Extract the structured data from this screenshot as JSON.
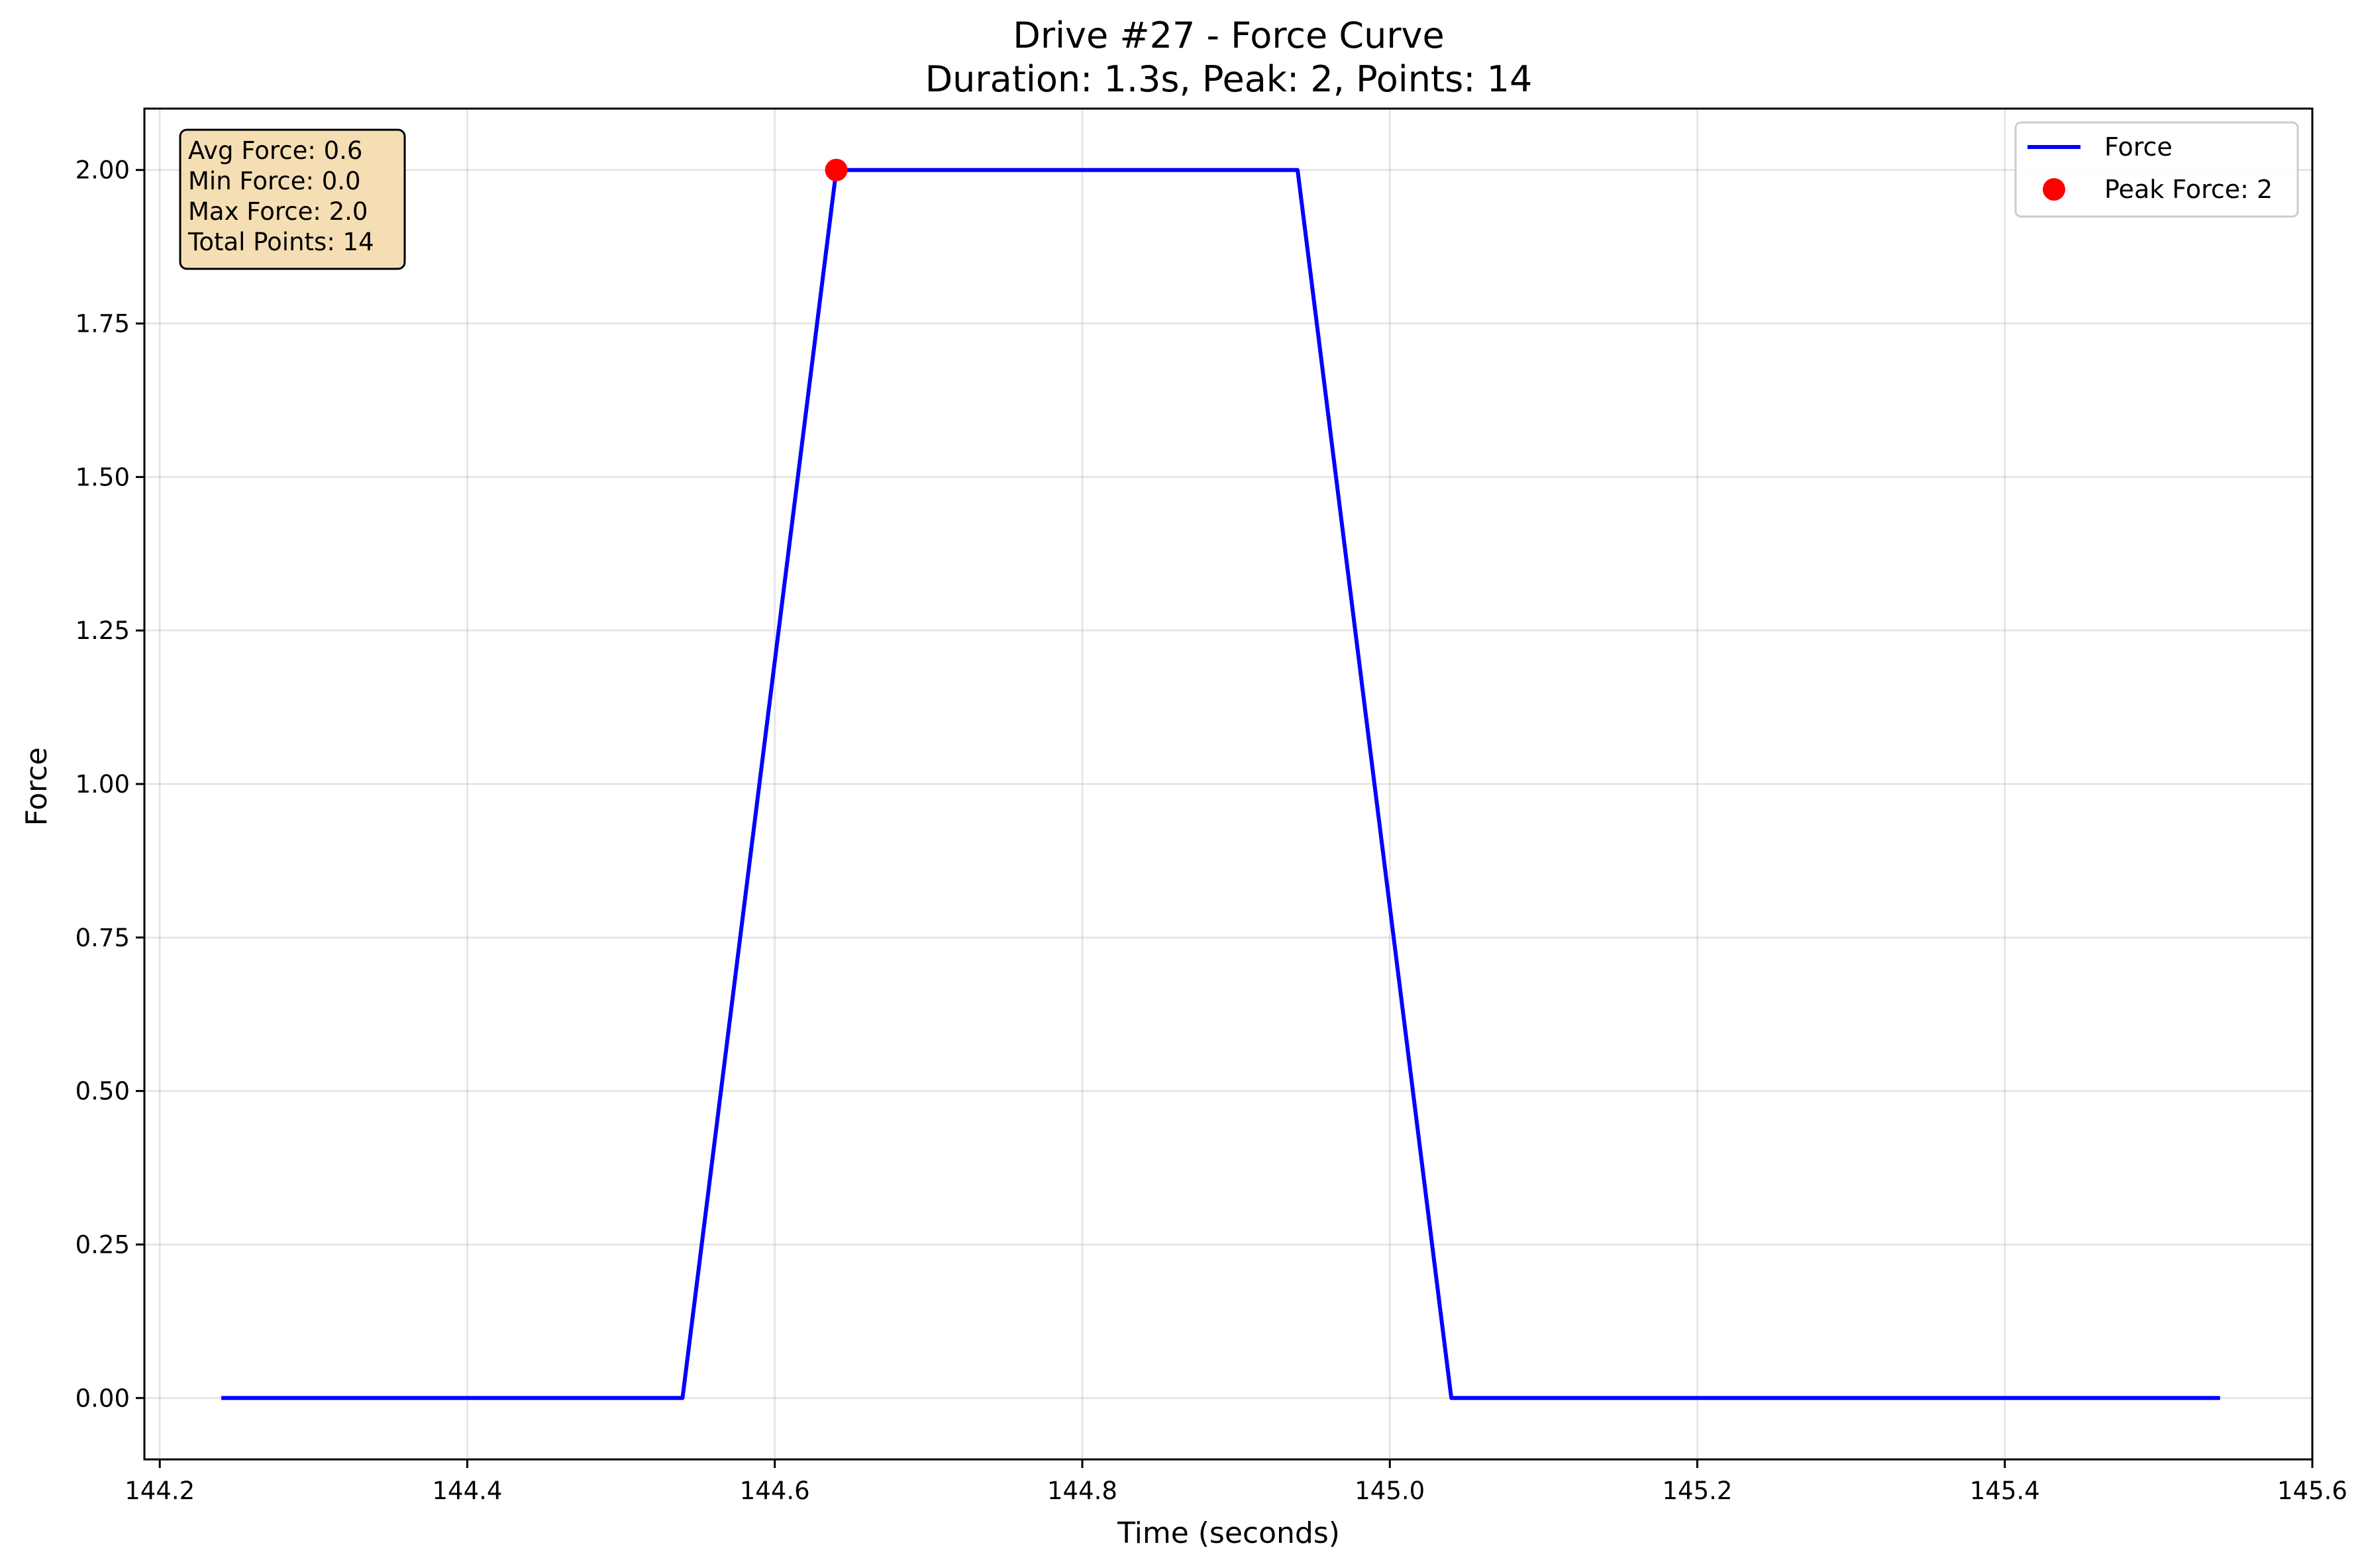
{
  "chart_data": {
    "type": "line",
    "title": "Drive #27 - Force Curve",
    "subtitle": "Duration: 1.3s, Peak: 2, Points: 14",
    "xlabel": "Time (seconds)",
    "ylabel": "Force",
    "xlim": [
      144.19,
      145.6
    ],
    "ylim": [
      -0.1,
      2.1
    ],
    "xticks": [
      144.2,
      144.4,
      144.6,
      144.8,
      145.0,
      145.2,
      145.4,
      145.6
    ],
    "xtick_labels": [
      "144.2",
      "144.4",
      "144.6",
      "144.8",
      "145.0",
      "145.2",
      "145.4",
      "145.6"
    ],
    "yticks": [
      0,
      0.25,
      0.5,
      0.75,
      1.0,
      1.25,
      1.5,
      1.75,
      2.0
    ],
    "ytick_labels": [
      "0.00",
      "0.25",
      "0.50",
      "0.75",
      "1.00",
      "1.25",
      "1.50",
      "1.75",
      "2.00"
    ],
    "grid": true,
    "legend_position": "top-right",
    "series": [
      {
        "name": "Force",
        "color": "#0000ff",
        "x": [
          144.24,
          144.34,
          144.44,
          144.54,
          144.64,
          144.74,
          144.84,
          144.94,
          145.04,
          145.14,
          145.24,
          145.34,
          145.44,
          145.54
        ],
        "y": [
          0,
          0,
          0,
          0,
          2,
          2,
          2,
          2,
          0,
          0,
          0,
          0,
          0,
          0
        ]
      }
    ],
    "peak": {
      "label": "Peak Force: 2",
      "x": 144.64,
      "y": 2,
      "color": "#ff0000"
    },
    "stats_box": {
      "lines": [
        "Avg Force: 0.6",
        "Min Force: 0.0",
        "Max Force: 2.0",
        "Total Points: 14"
      ],
      "background": "#f5deb3",
      "position": "top-left"
    }
  }
}
